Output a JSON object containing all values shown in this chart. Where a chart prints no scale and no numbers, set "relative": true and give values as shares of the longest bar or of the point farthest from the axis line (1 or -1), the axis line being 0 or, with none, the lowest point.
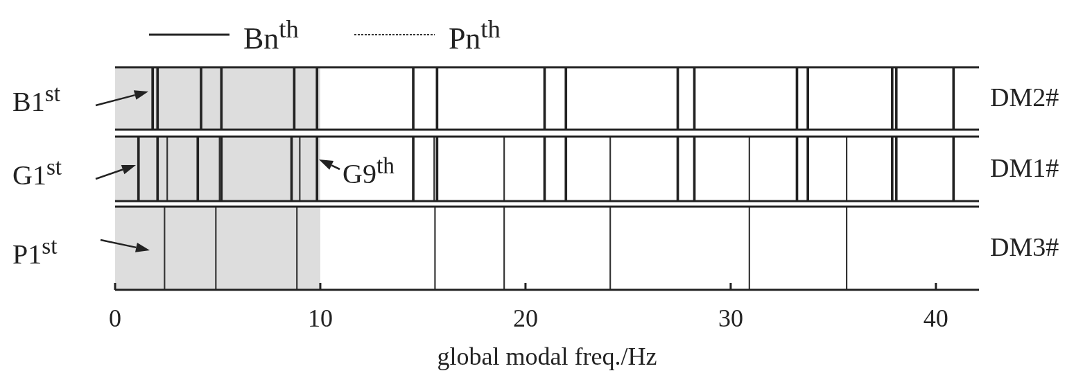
{
  "chart_data": [
    {
      "type": "bar",
      "relative": true,
      "ylabel": "DM2#",
      "xlim": [
        0,
        42.1
      ],
      "tick_labels": false,
      "bands": [
        {
          "axis": "x",
          "from": 0,
          "to": 10,
          "color": "#dddddd"
        }
      ],
      "xticks": [
        0,
        10,
        20,
        30,
        40
      ],
      "annotations": [
        "B1$^{st}$"
      ],
      "series": [
        {
          "color": "#222222",
          "line_style": "solid",
          "x": [
            1.83,
            2.07,
            4.19,
            5.18,
            8.73,
            9.84,
            14.53,
            15.69,
            20.93,
            21.97,
            27.42,
            28.23,
            33.23,
            33.76,
            37.87,
            38.07,
            40.86
          ],
          "values": [
            1,
            1,
            1,
            1,
            1,
            1,
            1,
            1,
            1,
            1,
            1,
            1,
            1,
            1,
            1,
            1,
            1
          ]
        }
      ]
    },
    {
      "type": "bar",
      "relative": true,
      "ylabel": "DM1#",
      "xlim": [
        0,
        42.1
      ],
      "tick_labels": false,
      "legend": "top",
      "bands": [
        {
          "axis": "x",
          "from": 0,
          "to": 10,
          "color": "#dddddd"
        }
      ],
      "xticks": [
        0,
        10,
        20,
        30,
        40
      ],
      "annotations": [
        "G1$^{st}$",
        "G9$^{th}$"
      ],
      "series": [
        {
          "name": "Bn$^{th}$",
          "color": "#222222",
          "line_style": "solid",
          "x": [
            1.14,
            2.07,
            4.03,
            5.18,
            8.6,
            9.84,
            14.53,
            15.69,
            20.93,
            21.97,
            27.42,
            28.23,
            33.23,
            33.76,
            37.87,
            38.07,
            40.86
          ],
          "values": [
            1,
            1,
            1,
            1,
            1,
            1,
            1,
            1,
            1,
            1,
            1,
            1,
            1,
            1,
            1,
            1,
            1
          ]
        },
        {
          "name": "Pn$^{th}$",
          "color": "#333333",
          "line_style": "dotted",
          "x": [
            2.54,
            5.09,
            9.0,
            15.55,
            18.96,
            24.13,
            30.91,
            35.65
          ],
          "values": [
            1,
            1,
            1,
            1,
            1,
            1,
            1,
            1
          ]
        }
      ]
    },
    {
      "type": "bar",
      "relative": true,
      "ylabel": "DM3#",
      "xlabel": "global modal freq./Hz",
      "xlim": [
        0,
        42.1
      ],
      "xticks": [
        0,
        10,
        20,
        30,
        40
      ],
      "bands": [
        {
          "axis": "x",
          "from": 0,
          "to": 10,
          "color": "#dddddd"
        }
      ],
      "annotations": [
        "P1$^{st}$"
      ],
      "series": [
        {
          "color": "#333333",
          "line_style": "dotted",
          "x": [
            2.41,
            4.91,
            8.86,
            15.59,
            18.96,
            24.13,
            30.91,
            35.65
          ],
          "values": [
            1,
            1,
            1,
            1,
            1,
            1,
            1,
            1
          ]
        }
      ]
    }
  ]
}
